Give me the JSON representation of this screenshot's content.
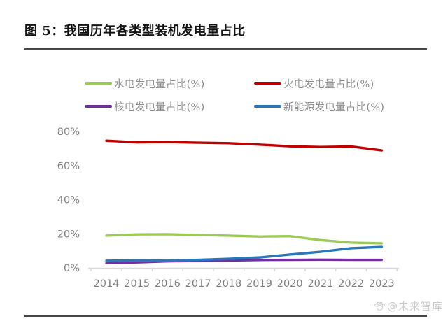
{
  "title": "图 5：我国历年各类型装机发电量占比",
  "watermark": {
    "text": "@未来智库",
    "icon": "paw-icon"
  },
  "colors": {
    "hydro_green": "#9bcb56",
    "thermal_red": "#c00000",
    "nuclear_purple": "#7030a0",
    "newenergy_blue": "#2878be",
    "axis_line": "#d9d9d9",
    "axis_text": "#7f7f7f",
    "legend_text": "#8c8c8c",
    "divider": "#474747"
  },
  "chart_data": {
    "type": "line",
    "title": "",
    "xlabel": "",
    "ylabel": "",
    "x": [
      "2014",
      "2015",
      "2016",
      "2017",
      "2018",
      "2019",
      "2020",
      "2021",
      "2022",
      "2023"
    ],
    "series": [
      {
        "name": "水电发电量占比(%)",
        "color": "#9bcb56",
        "values": [
          18.9,
          19.6,
          19.7,
          19.3,
          18.9,
          18.4,
          18.6,
          16.3,
          14.8,
          14.4
        ]
      },
      {
        "name": "火电发电量占比(%)",
        "color": "#c00000",
        "values": [
          74.6,
          73.6,
          73.8,
          73.4,
          73.1,
          72.3,
          71.3,
          70.9,
          71.2,
          68.9
        ]
      },
      {
        "name": "核电发电量占比(%)",
        "color": "#7030a0",
        "values": [
          2.7,
          3.2,
          3.8,
          4.1,
          4.3,
          4.6,
          4.7,
          4.8,
          4.7,
          4.7
        ]
      },
      {
        "name": "新能源发电量占比(%)",
        "color": "#2878be",
        "values": [
          4.2,
          4.4,
          4.3,
          4.7,
          5.3,
          6.1,
          7.8,
          9.4,
          11.5,
          12.3
        ]
      }
    ],
    "ylim": [
      0,
      80
    ],
    "yticks": [
      0,
      20,
      40,
      60,
      80
    ],
    "ytick_suffix": "%",
    "legend_position": "top",
    "grid": false
  }
}
